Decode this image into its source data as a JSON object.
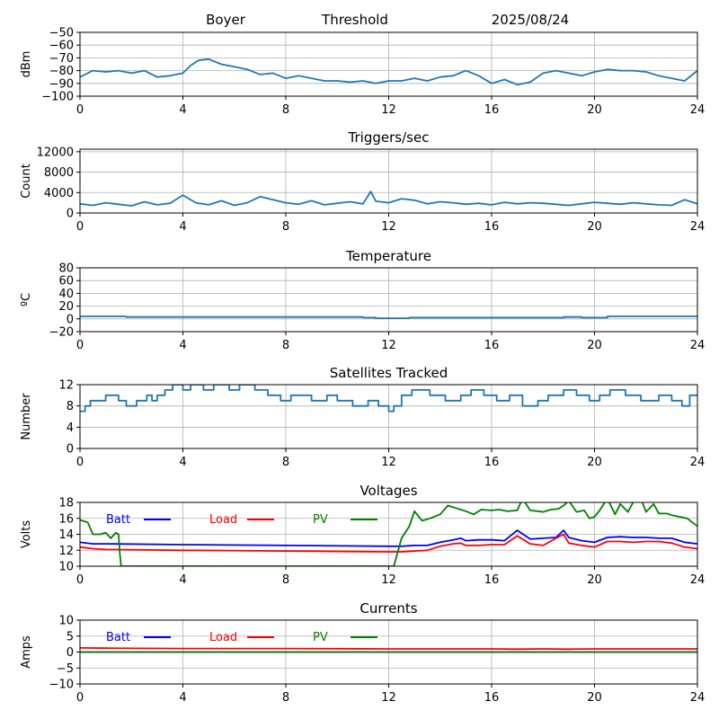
{
  "header": {
    "station": "Boyer",
    "mode": "Threshold",
    "date": "2025/08/24"
  },
  "colors": {
    "signal": "#1f77b4",
    "batt": "#0000ff",
    "load": "#ff0000",
    "pv": "#008000",
    "grid": "#b0b0b0"
  },
  "chart_data": [
    {
      "id": "signal",
      "type": "line",
      "title": "",
      "xlabel": "",
      "ylabel": "dBm",
      "xlim": [
        0,
        24
      ],
      "ylim": [
        -100,
        -50
      ],
      "xticks": [
        0,
        4,
        8,
        12,
        16,
        20,
        24
      ],
      "yticks": [
        -100,
        -90,
        -80,
        -70,
        -60,
        -50
      ],
      "grid": true,
      "series": [
        {
          "name": "",
          "color": "#1f77b4",
          "x": [
            0,
            0.5,
            1,
            1.5,
            2,
            2.5,
            3,
            3.5,
            4,
            4.3,
            4.6,
            5,
            5.5,
            6,
            6.5,
            7,
            7.5,
            8,
            8.5,
            9,
            9.5,
            10,
            10.5,
            11,
            11.5,
            12,
            12.5,
            13,
            13.5,
            14,
            14.5,
            15,
            15.5,
            16,
            16.5,
            17,
            17.5,
            18,
            18.5,
            19,
            19.5,
            20,
            20.5,
            21,
            21.5,
            22,
            22.5,
            23,
            23.5,
            24
          ],
          "y": [
            -85,
            -80,
            -81,
            -80,
            -82,
            -80,
            -85,
            -84,
            -82,
            -76,
            -72,
            -71,
            -75,
            -77,
            -79,
            -83,
            -82,
            -86,
            -84,
            -86,
            -88,
            -88,
            -89,
            -88,
            -90,
            -88,
            -88,
            -86,
            -88,
            -85,
            -84,
            -80,
            -84,
            -90,
            -87,
            -91,
            -89,
            -82,
            -80,
            -82,
            -84,
            -81,
            -79,
            -80,
            -80,
            -81,
            -84,
            -86,
            -88,
            -80
          ]
        }
      ]
    },
    {
      "id": "triggers",
      "type": "line",
      "title": "Triggers/sec",
      "xlabel": "",
      "ylabel": "Count",
      "xlim": [
        0,
        24
      ],
      "ylim": [
        0,
        12500
      ],
      "xticks": [
        0,
        4,
        8,
        12,
        16,
        20,
        24
      ],
      "yticks": [
        0,
        4000,
        8000,
        12000
      ],
      "grid": true,
      "series": [
        {
          "name": "",
          "color": "#1f77b4",
          "x": [
            0,
            0.5,
            1,
            1.5,
            2,
            2.5,
            3,
            3.5,
            4,
            4.5,
            5,
            5.5,
            6,
            6.5,
            7,
            7.5,
            8,
            8.5,
            9,
            9.5,
            10,
            10.5,
            11,
            11.3,
            11.5,
            12,
            12.5,
            13,
            13.5,
            14,
            14.5,
            15,
            15.5,
            16,
            16.5,
            17,
            17.5,
            18,
            18.5,
            19,
            19.5,
            20,
            20.5,
            21,
            21.5,
            22,
            22.5,
            23,
            23.5,
            24
          ],
          "y": [
            1800,
            1500,
            2000,
            1700,
            1400,
            2200,
            1600,
            1900,
            3500,
            2000,
            1600,
            2400,
            1500,
            2000,
            3200,
            2600,
            2000,
            1700,
            2400,
            1600,
            1900,
            2200,
            1800,
            4200,
            2300,
            2000,
            2800,
            2500,
            1800,
            2200,
            2000,
            1700,
            1900,
            1600,
            2100,
            1800,
            2000,
            1900,
            1700,
            1500,
            1800,
            2100,
            1900,
            1700,
            2000,
            1800,
            1600,
            1500,
            2600,
            1800
          ]
        }
      ]
    },
    {
      "id": "temperature",
      "type": "line",
      "title": "Temperature",
      "xlabel": "",
      "ylabel": "ºC",
      "xlim": [
        0,
        24
      ],
      "ylim": [
        -20,
        80
      ],
      "xticks": [
        0,
        4,
        8,
        12,
        16,
        20,
        24
      ],
      "yticks": [
        -20,
        0,
        20,
        40,
        60,
        80
      ],
      "grid": true,
      "series": [
        {
          "name": "",
          "color": "#1f77b4",
          "x": [
            0,
            1.8,
            1.8,
            11,
            11,
            11.5,
            11.5,
            12.8,
            12.8,
            18.8,
            18.8,
            19.5,
            19.5,
            20.5,
            20.5,
            24
          ],
          "y": [
            4,
            4,
            3,
            3,
            2,
            2,
            1,
            1,
            2,
            2,
            3,
            3,
            2,
            2,
            4,
            4
          ]
        }
      ]
    },
    {
      "id": "satellites",
      "type": "line",
      "title": "Satellites Tracked",
      "xlabel": "",
      "ylabel": "Number",
      "xlim": [
        0,
        24
      ],
      "ylim": [
        0,
        12
      ],
      "xticks": [
        0,
        4,
        8,
        12,
        16,
        20,
        24
      ],
      "yticks": [
        0,
        4,
        8,
        12
      ],
      "grid": true,
      "series": [
        {
          "name": "",
          "color": "#1f77b4",
          "x": [
            0,
            0.2,
            0.2,
            0.4,
            0.4,
            1,
            1,
            1.5,
            1.5,
            1.8,
            1.8,
            2.2,
            2.2,
            2.6,
            2.6,
            2.8,
            2.8,
            3,
            3,
            3.3,
            3.3,
            3.6,
            3.6,
            4,
            4,
            4.3,
            4.3,
            4.8,
            4.8,
            5.2,
            5.2,
            5.8,
            5.8,
            6.2,
            6.2,
            6.8,
            6.8,
            7.3,
            7.3,
            7.8,
            7.8,
            8.2,
            8.2,
            9,
            9,
            9.6,
            9.6,
            10,
            10,
            10.6,
            10.6,
            11.2,
            11.2,
            11.6,
            11.6,
            12,
            12,
            12.2,
            12.2,
            12.5,
            12.5,
            12.9,
            12.9,
            13.6,
            13.6,
            14.2,
            14.2,
            14.8,
            14.8,
            15.2,
            15.2,
            15.7,
            15.7,
            16.2,
            16.2,
            16.7,
            16.7,
            17.2,
            17.2,
            17.8,
            17.8,
            18.2,
            18.2,
            18.8,
            18.8,
            19.3,
            19.3,
            19.8,
            19.8,
            20.2,
            20.2,
            20.6,
            20.6,
            21.2,
            21.2,
            21.8,
            21.8,
            22.5,
            22.5,
            23,
            23,
            23.4,
            23.4,
            23.7,
            23.7,
            24
          ],
          "y": [
            7,
            7,
            8,
            8,
            9,
            9,
            10,
            10,
            9,
            9,
            8,
            8,
            9,
            9,
            10,
            10,
            9,
            9,
            10,
            10,
            11,
            11,
            12,
            12,
            11,
            11,
            12,
            12,
            11,
            11,
            12,
            12,
            11,
            11,
            12,
            12,
            11,
            11,
            10,
            10,
            9,
            9,
            10,
            10,
            9,
            9,
            10,
            10,
            9,
            9,
            8,
            8,
            9,
            9,
            8,
            8,
            7,
            7,
            8,
            8,
            10,
            10,
            11,
            11,
            10,
            10,
            9,
            9,
            10,
            10,
            11,
            11,
            10,
            10,
            9,
            9,
            10,
            10,
            8,
            8,
            9,
            9,
            10,
            10,
            11,
            11,
            10,
            10,
            9,
            9,
            10,
            10,
            11,
            11,
            10,
            10,
            9,
            9,
            10,
            10,
            9,
            9,
            8,
            8,
            10,
            10
          ]
        }
      ]
    },
    {
      "id": "voltages",
      "type": "line",
      "title": "Voltages",
      "xlabel": "",
      "ylabel": "Volts",
      "xlim": [
        0,
        24
      ],
      "ylim": [
        10,
        18
      ],
      "xticks": [
        0,
        4,
        8,
        12,
        16,
        20,
        24
      ],
      "yticks": [
        10,
        12,
        14,
        16,
        18
      ],
      "grid": true,
      "legend": "top-left",
      "series": [
        {
          "name": "Batt",
          "color": "#0000ff",
          "x": [
            0,
            0.5,
            1,
            4,
            8,
            12,
            12.5,
            13,
            13.5,
            14,
            14.5,
            14.8,
            15,
            15.5,
            16,
            16.5,
            17,
            17.5,
            18,
            18.5,
            18.8,
            19,
            19.5,
            20,
            20.5,
            21,
            21.5,
            22,
            22.5,
            23,
            23.5,
            24
          ],
          "y": [
            13.0,
            12.8,
            12.8,
            12.7,
            12.6,
            12.5,
            12.5,
            12.6,
            12.6,
            13.0,
            13.3,
            13.5,
            13.2,
            13.3,
            13.3,
            13.2,
            14.5,
            13.4,
            13.5,
            13.6,
            14.5,
            13.6,
            13.2,
            13.0,
            13.6,
            13.7,
            13.6,
            13.6,
            13.5,
            13.5,
            13.0,
            12.8
          ]
        },
        {
          "name": "Load",
          "color": "#ff0000",
          "x": [
            0,
            0.5,
            1,
            4,
            8,
            12,
            12.5,
            13,
            13.5,
            14,
            14.5,
            14.8,
            15,
            15.5,
            16,
            16.5,
            17,
            17.5,
            18,
            18.5,
            18.8,
            19,
            19.5,
            20,
            20.5,
            21,
            21.5,
            22,
            22.5,
            23,
            23.5,
            24
          ],
          "y": [
            12.4,
            12.2,
            12.1,
            12.0,
            11.9,
            11.8,
            11.8,
            11.9,
            12.0,
            12.5,
            12.8,
            12.9,
            12.6,
            12.6,
            12.7,
            12.7,
            13.8,
            12.8,
            12.6,
            13.5,
            14.0,
            12.9,
            12.6,
            12.4,
            13.1,
            13.1,
            13.0,
            13.1,
            13.1,
            12.9,
            12.4,
            12.2
          ]
        },
        {
          "name": "PV",
          "color": "#008000",
          "x": [
            0,
            0.3,
            0.5,
            0.8,
            1,
            1.2,
            1.4,
            1.5,
            1.55,
            1.6,
            12.2,
            12.5,
            12.8,
            13,
            13.3,
            13.6,
            14,
            14.3,
            14.6,
            15,
            15.3,
            15.6,
            16,
            16.3,
            16.6,
            17,
            17.2,
            17.5,
            17.8,
            18,
            18.3,
            18.6,
            18.8,
            19,
            19.3,
            19.6,
            19.8,
            20,
            20.2,
            20.5,
            20.8,
            21,
            21.3,
            21.5,
            21.8,
            22,
            22.3,
            22.5,
            22.8,
            23,
            23.3,
            23.6,
            24
          ],
          "y": [
            15.8,
            15.5,
            14.0,
            14.0,
            14.2,
            13.5,
            14.2,
            14.0,
            11.5,
            10.0,
            10.0,
            13.5,
            15.0,
            16.9,
            15.7,
            16.0,
            16.5,
            17.6,
            17.3,
            16.9,
            16.5,
            17.1,
            17.0,
            17.1,
            16.9,
            17.0,
            18.5,
            17.0,
            16.9,
            16.8,
            17.1,
            17.2,
            17.6,
            18.2,
            16.8,
            17.0,
            16.0,
            16.2,
            17.0,
            18.5,
            16.5,
            17.8,
            16.8,
            18.0,
            18.5,
            16.8,
            17.8,
            16.6,
            16.6,
            16.4,
            16.2,
            16.0,
            15.0
          ]
        }
      ]
    },
    {
      "id": "currents",
      "type": "line",
      "title": "Currents",
      "xlabel": "",
      "ylabel": "Amps",
      "xlim": [
        0,
        24
      ],
      "ylim": [
        -10,
        10
      ],
      "xticks": [
        0,
        4,
        8,
        12,
        16,
        20,
        24
      ],
      "yticks": [
        -10,
        -5,
        0,
        5,
        10
      ],
      "grid": true,
      "legend": "top-left",
      "series": [
        {
          "name": "Batt",
          "color": "#0000ff",
          "x": [
            0,
            24
          ],
          "y": [
            0.0,
            0.0
          ]
        },
        {
          "name": "Load",
          "color": "#ff0000",
          "x": [
            0,
            1,
            4,
            8,
            12,
            16,
            17,
            18,
            19,
            20,
            24
          ],
          "y": [
            1.3,
            1.2,
            1.1,
            1.1,
            1.0,
            1.0,
            0.9,
            1.0,
            0.9,
            1.0,
            1.0
          ]
        },
        {
          "name": "PV",
          "color": "#008000",
          "x": [
            0,
            24
          ],
          "y": [
            0.0,
            0.0
          ]
        }
      ]
    }
  ]
}
